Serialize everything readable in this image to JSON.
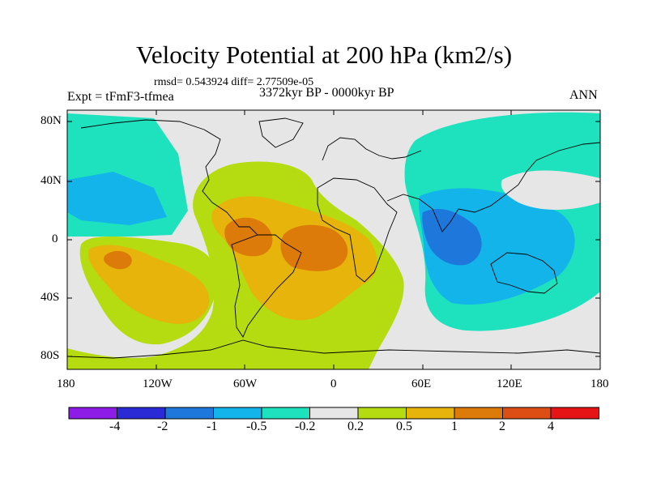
{
  "figure": {
    "title": "Velocity Potential at 200 hPa (km2/s)",
    "stats": "rmsd= 0.543924 diff= 2.77509e-05",
    "left_label": "Expt = tFmF3-tfmea",
    "center_label": "3372kyr BP - 0000kyr BP",
    "right_label": "ANN"
  },
  "axes": {
    "lon_ticks": [
      "180",
      "120W",
      "60W",
      "0",
      "60E",
      "120E",
      "180"
    ],
    "lat_ticks": [
      "80N",
      "40N",
      "0",
      "40S",
      "80S"
    ]
  },
  "colorbar": {
    "labels": [
      "-4",
      "-2",
      "-1",
      "-0.5",
      "-0.2",
      "0.2",
      "0.5",
      "1",
      "2",
      "4"
    ],
    "colors": [
      "#8c1ce6",
      "#2a2ad6",
      "#1e78dc",
      "#12b4ea",
      "#1ee2be",
      "#e6e6e6",
      "#b4dc10",
      "#e6b40a",
      "#dc7a0a",
      "#dc4e14",
      "#e61414"
    ]
  },
  "chart_data": {
    "type": "contour-map",
    "variable": "Velocity Potential at 200 hPa",
    "units": "km2/s",
    "levels": [
      -4,
      -2,
      -1,
      -0.5,
      -0.2,
      0.2,
      0.5,
      1,
      2,
      4
    ],
    "lon_range": [
      -180,
      180
    ],
    "lat_range": [
      -90,
      90
    ],
    "features": [
      {
        "region": "Atlantic / South America / Africa",
        "sign": "positive",
        "max_band": "1 to 2"
      },
      {
        "region": "South Pacific",
        "sign": "positive",
        "max_band": "1 to 2"
      },
      {
        "region": "Indian Ocean / Maritime Continent",
        "sign": "negative",
        "min_band": "-2 to -1"
      },
      {
        "region": "North Pacific",
        "sign": "negative",
        "min_band": "-1 to -0.5"
      }
    ]
  }
}
